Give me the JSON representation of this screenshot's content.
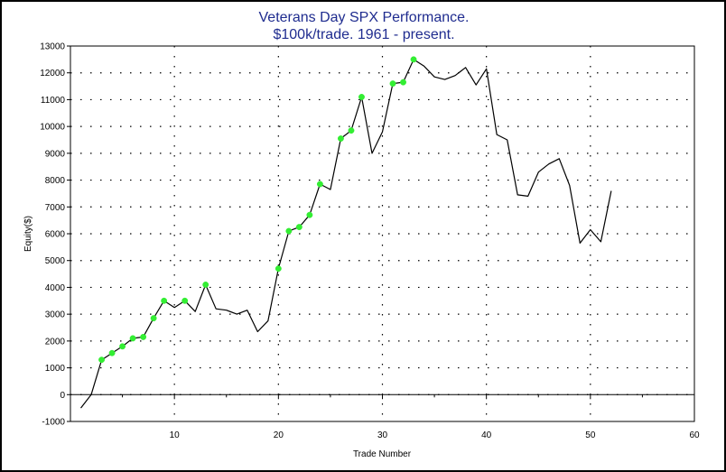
{
  "chart_data": {
    "type": "line",
    "title": "Veterans Day SPX Performance.",
    "subtitle": "$100k/trade. 1961 - present.",
    "xlabel": "Trade Number",
    "ylabel": "Equity($)",
    "xlim": [
      0,
      60
    ],
    "ylim": [
      -1000,
      13000
    ],
    "x_ticks": [
      "10",
      "20",
      "30",
      "40",
      "50",
      "60"
    ],
    "y_ticks": [
      "-1000",
      "0",
      "1000",
      "2000",
      "3000",
      "4000",
      "5000",
      "6000",
      "7000",
      "8000",
      "9000",
      "10000",
      "11000",
      "12000",
      "13000"
    ],
    "grid": "dotted",
    "line_color": "#000000",
    "marker_color": "#33ee33",
    "series": [
      {
        "x": [
          1,
          2,
          3,
          4,
          5,
          6,
          7,
          8,
          9,
          10,
          11,
          12,
          13,
          14,
          15,
          16,
          17,
          18,
          19,
          20,
          21,
          22,
          23,
          24,
          25,
          26,
          27,
          28,
          29,
          30,
          31,
          32,
          33,
          34,
          35,
          36,
          37,
          38,
          39,
          40,
          41,
          42,
          43,
          44,
          45,
          46,
          47,
          48,
          49,
          50,
          51,
          52
        ],
        "values": [
          -500,
          0,
          1300,
          1550,
          1800,
          2100,
          2150,
          2850,
          3500,
          3250,
          3500,
          3100,
          4100,
          3200,
          3150,
          3000,
          3150,
          2350,
          2750,
          4700,
          6100,
          6250,
          6700,
          7850,
          7650,
          9550,
          9850,
          11100,
          9000,
          9800,
          11600,
          11650,
          12500,
          12250,
          11850,
          11750,
          11900,
          12200,
          11550,
          12150,
          9700,
          9500,
          7450,
          7400,
          8300,
          8600,
          8800,
          7800,
          5650,
          6150,
          5700,
          7600
        ],
        "up_days": [
          3,
          4,
          5,
          6,
          7,
          8,
          9,
          11,
          13,
          20,
          21,
          22,
          23,
          24,
          26,
          27,
          28,
          31,
          32,
          33
        ]
      }
    ]
  }
}
